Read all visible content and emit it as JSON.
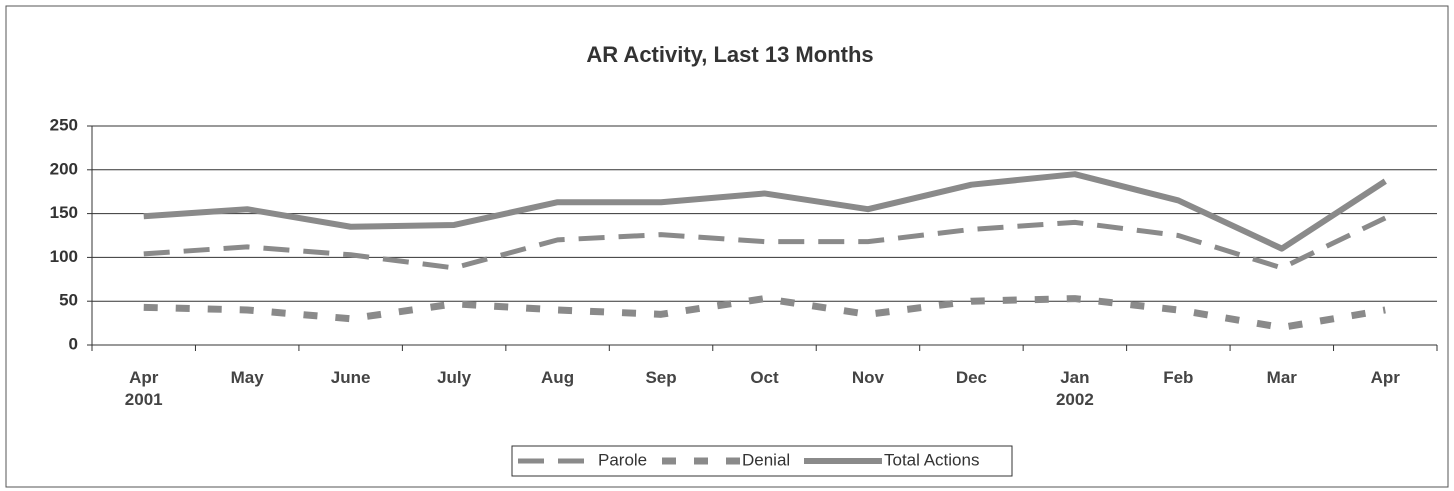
{
  "chart_data": {
    "type": "line",
    "title": "AR Activity, Last 13 Months",
    "categories": [
      "Apr 2001",
      "May",
      "June",
      "July",
      "Aug",
      "Sep",
      "Oct",
      "Nov",
      "Dec",
      "Jan 2002",
      "Feb",
      "Mar",
      "Apr"
    ],
    "series": [
      {
        "name": "Parole",
        "color": "#8a8a8a",
        "line_style": "dashed",
        "values": [
          104,
          112,
          103,
          88,
          120,
          126,
          118,
          118,
          132,
          140,
          125,
          88,
          145
        ]
      },
      {
        "name": "Denial",
        "color": "#8a8a8a",
        "line_style": "dotted",
        "values": [
          43,
          40,
          30,
          47,
          40,
          35,
          53,
          35,
          50,
          53,
          40,
          20,
          40
        ]
      },
      {
        "name": "Total Actions",
        "color": "#8a8a8a",
        "line_style": "solid",
        "values": [
          147,
          155,
          135,
          137,
          163,
          163,
          173,
          155,
          183,
          195,
          165,
          110,
          187
        ]
      }
    ],
    "ylim": [
      0,
      250
    ],
    "yticks": [
      0,
      50,
      100,
      150,
      200,
      250
    ],
    "grid": true,
    "legend": "bottom"
  }
}
